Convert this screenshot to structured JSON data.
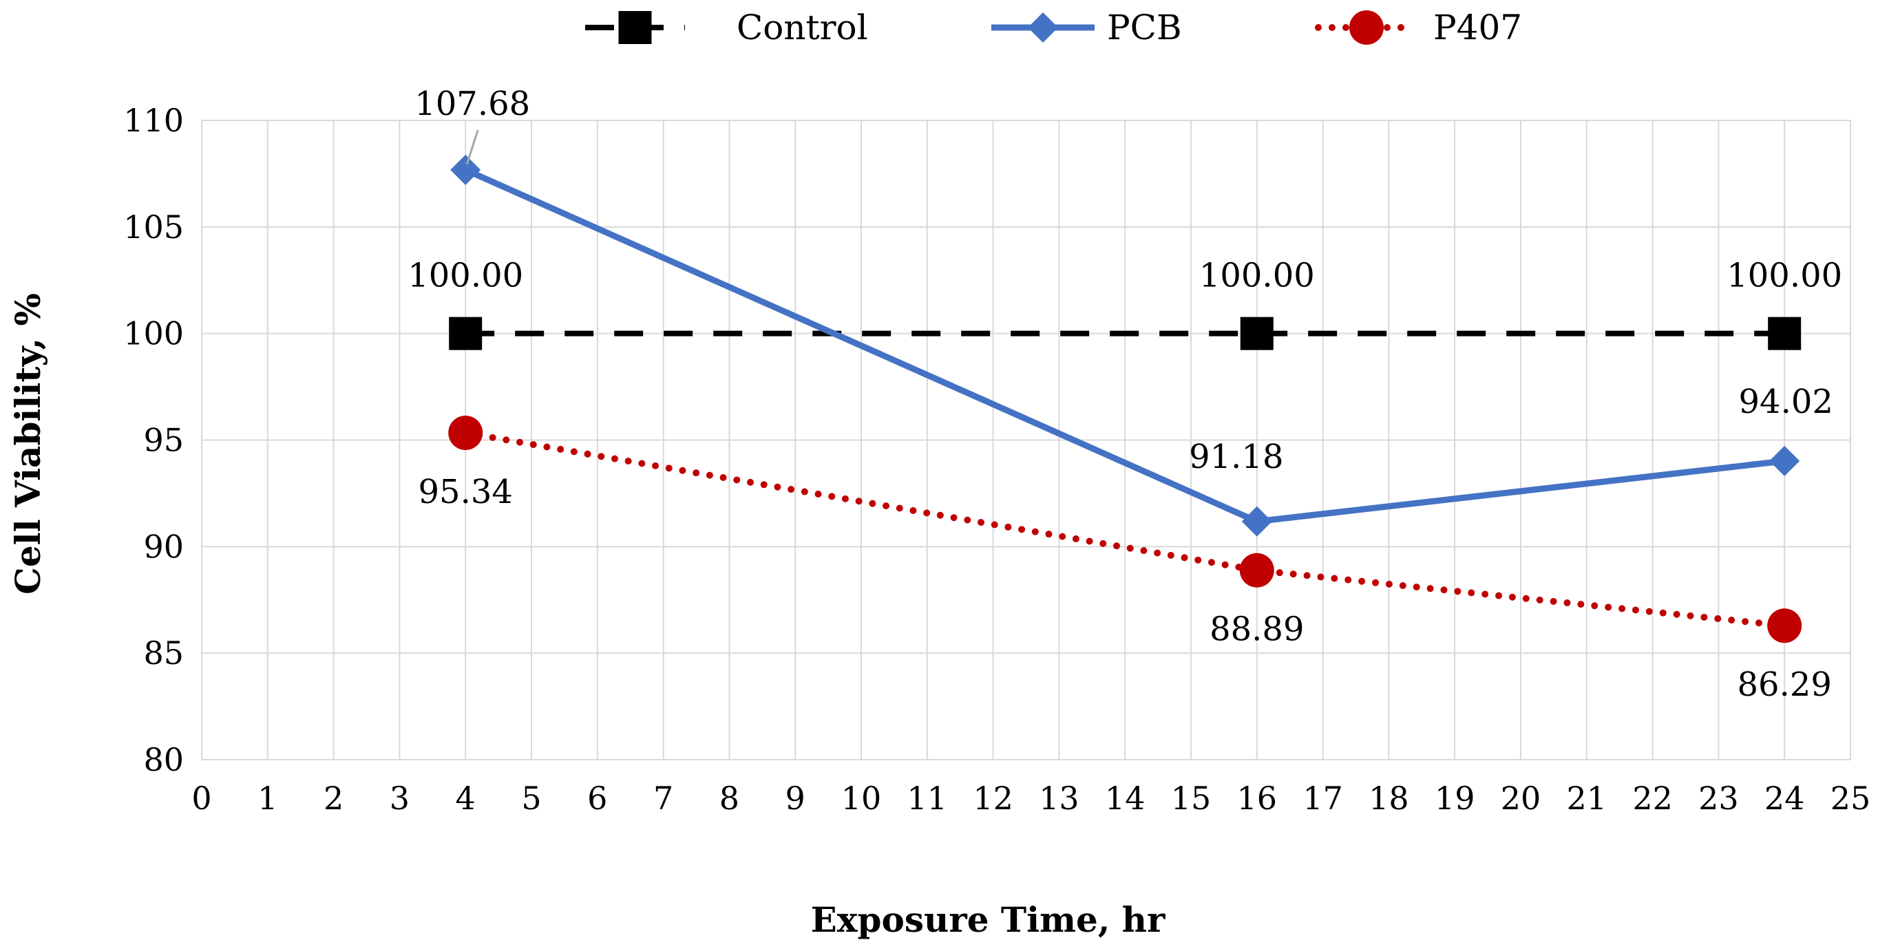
{
  "chart_data": {
    "type": "line",
    "title": "",
    "xlabel": "Exposure Time, hr",
    "ylabel": "Cell Viability, %",
    "xlim": [
      0,
      25
    ],
    "ylim": [
      80,
      110
    ],
    "xticks": [
      0,
      1,
      2,
      3,
      4,
      5,
      6,
      7,
      8,
      9,
      10,
      11,
      12,
      13,
      14,
      15,
      16,
      17,
      18,
      19,
      20,
      21,
      22,
      23,
      24,
      25
    ],
    "yticks": [
      80,
      85,
      90,
      95,
      100,
      105,
      110
    ],
    "grid": true,
    "legend_position": "top-center",
    "series": [
      {
        "name": "Control",
        "color": "#000000",
        "line_style": "dashed",
        "marker": "square",
        "x": [
          4,
          16,
          24
        ],
        "values": [
          100,
          100,
          100
        ],
        "labels": [
          "100.00",
          "100.00",
          "100.00"
        ]
      },
      {
        "name": "PCB",
        "color": "#4472C4",
        "line_style": "solid",
        "marker": "diamond",
        "x": [
          4,
          16,
          24
        ],
        "values": [
          107.68,
          91.18,
          94.02
        ],
        "labels": [
          "107.68",
          "91.18",
          "94.02"
        ]
      },
      {
        "name": "P407",
        "color": "#C00000",
        "line_style": "dotted",
        "marker": "circle",
        "x": [
          4,
          16,
          24
        ],
        "values": [
          95.34,
          88.89,
          86.29
        ],
        "labels": [
          "95.34",
          "88.89",
          "86.29"
        ]
      }
    ]
  }
}
